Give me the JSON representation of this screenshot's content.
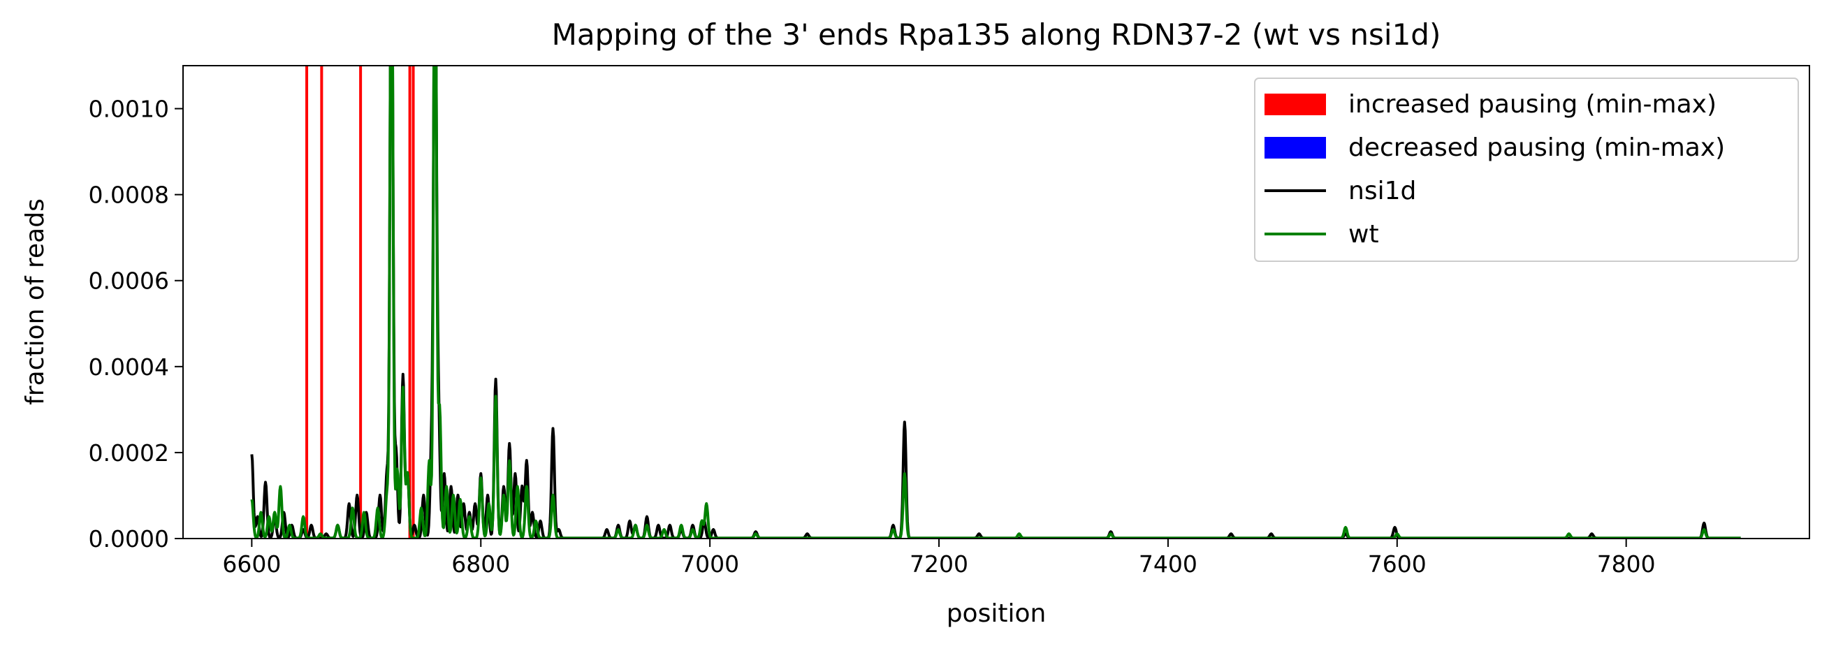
{
  "chart_data": {
    "type": "line",
    "title": "Mapping of the 3' ends Rpa135 along RDN37-2 (wt vs nsi1d)",
    "xlabel": "position",
    "ylabel": "fraction of reads",
    "xlim": [
      6540,
      7960
    ],
    "ylim": [
      0,
      0.0011
    ],
    "xticks": [
      6600,
      6800,
      7000,
      7200,
      7400,
      7600,
      7800
    ],
    "xtick_labels": [
      "6600",
      "6800",
      "7000",
      "7200",
      "7400",
      "7600",
      "7800"
    ],
    "yticks": [
      0,
      0.0002,
      0.0004,
      0.0006,
      0.0008,
      0.001
    ],
    "ytick_labels": [
      "0.0000",
      "0.0002",
      "0.0004",
      "0.0006",
      "0.0008",
      "0.0010"
    ],
    "grid": false,
    "legend_position": "top-right",
    "legend": [
      {
        "label": "increased pausing (min-max)",
        "kind": "patch",
        "color": "#ff0000"
      },
      {
        "label": "decreased pausing (min-max)",
        "kind": "patch",
        "color": "#0000ff"
      },
      {
        "label": "nsi1d",
        "kind": "line",
        "color": "#000000"
      },
      {
        "label": "wt",
        "kind": "line",
        "color": "#008000"
      }
    ],
    "increased_pausing_positions": [
      6648,
      6661,
      6695,
      6738,
      6741
    ],
    "series": [
      {
        "name": "nsi1d",
        "color": "#000000",
        "baseline": 1e-06,
        "range": [
          6600,
          7900
        ],
        "peaks": [
          [
            6600,
            0.000195
          ],
          [
            6605,
            5e-05
          ],
          [
            6612,
            0.00013
          ],
          [
            6620,
            5e-05
          ],
          [
            6628,
            6e-05
          ],
          [
            6635,
            3e-05
          ],
          [
            6645,
            2e-05
          ],
          [
            6652,
            3e-05
          ],
          [
            6665,
            1e-05
          ],
          [
            6675,
            3e-05
          ],
          [
            6685,
            8e-05
          ],
          [
            6692,
            0.0001
          ],
          [
            6700,
            6e-05
          ],
          [
            6712,
            0.0001
          ],
          [
            6718,
            0.00015
          ],
          [
            6722,
            0.0015
          ],
          [
            6726,
            0.0002
          ],
          [
            6732,
            0.00038
          ],
          [
            6736,
            0.00015
          ],
          [
            6742,
            3e-05
          ],
          [
            6750,
            0.0001
          ],
          [
            6757,
            0.0002
          ],
          [
            6760,
            0.0014
          ],
          [
            6763,
            0.0003
          ],
          [
            6768,
            0.00015
          ],
          [
            6774,
            0.00012
          ],
          [
            6780,
            0.0001
          ],
          [
            6785,
            8e-05
          ],
          [
            6790,
            6e-05
          ],
          [
            6795,
            8e-05
          ],
          [
            6800,
            0.00015
          ],
          [
            6806,
            0.0001
          ],
          [
            6813,
            0.00037
          ],
          [
            6820,
            0.00012
          ],
          [
            6825,
            0.00022
          ],
          [
            6830,
            0.00015
          ],
          [
            6836,
            0.00012
          ],
          [
            6840,
            0.00018
          ],
          [
            6845,
            6e-05
          ],
          [
            6852,
            4e-05
          ],
          [
            6863,
            0.000255
          ],
          [
            6868,
            2e-05
          ],
          [
            6910,
            2e-05
          ],
          [
            6920,
            3e-05
          ],
          [
            6930,
            4e-05
          ],
          [
            6935,
            3e-05
          ],
          [
            6945,
            5e-05
          ],
          [
            6955,
            3e-05
          ],
          [
            6965,
            3e-05
          ],
          [
            6975,
            2e-05
          ],
          [
            6985,
            3e-05
          ],
          [
            6995,
            4e-05
          ],
          [
            7003,
            2e-05
          ],
          [
            7040,
            1.5e-05
          ],
          [
            7085,
            1e-05
          ],
          [
            7160,
            3e-05
          ],
          [
            7170,
            0.00027
          ],
          [
            7235,
            1e-05
          ],
          [
            7350,
            1.5e-05
          ],
          [
            7455,
            1e-05
          ],
          [
            7490,
            1e-05
          ],
          [
            7555,
            1e-05
          ],
          [
            7598,
            2.5e-05
          ],
          [
            7770,
            1e-05
          ],
          [
            7868,
            3.5e-05
          ]
        ]
      },
      {
        "name": "wt",
        "color": "#008000",
        "baseline": 1e-06,
        "range": [
          6600,
          7900
        ],
        "peaks": [
          [
            6600,
            9e-05
          ],
          [
            6608,
            6e-05
          ],
          [
            6615,
            5e-05
          ],
          [
            6620,
            6e-05
          ],
          [
            6625,
            0.00012
          ],
          [
            6633,
            3e-05
          ],
          [
            6645,
            5e-05
          ],
          [
            6660,
            1e-05
          ],
          [
            6675,
            3e-05
          ],
          [
            6688,
            7e-05
          ],
          [
            6698,
            6e-05
          ],
          [
            6710,
            7e-05
          ],
          [
            6718,
            0.0001
          ],
          [
            6722,
            0.0015
          ],
          [
            6727,
            0.00016
          ],
          [
            6732,
            0.00035
          ],
          [
            6736,
            0.00015
          ],
          [
            6748,
            7e-05
          ],
          [
            6755,
            0.00018
          ],
          [
            6760,
            0.0015
          ],
          [
            6764,
            0.0003
          ],
          [
            6770,
            0.00012
          ],
          [
            6776,
            0.0001
          ],
          [
            6782,
            9e-05
          ],
          [
            6790,
            5e-05
          ],
          [
            6800,
            0.00014
          ],
          [
            6807,
            8e-05
          ],
          [
            6813,
            0.00033
          ],
          [
            6820,
            0.0001
          ],
          [
            6825,
            0.00018
          ],
          [
            6832,
            0.00012
          ],
          [
            6840,
            0.00012
          ],
          [
            6848,
            4e-05
          ],
          [
            6863,
            0.0001
          ],
          [
            6920,
            2e-05
          ],
          [
            6935,
            3e-05
          ],
          [
            6945,
            3e-05
          ],
          [
            6960,
            2e-05
          ],
          [
            6975,
            3e-05
          ],
          [
            6985,
            2e-05
          ],
          [
            6993,
            4e-05
          ],
          [
            6997,
            8e-05
          ],
          [
            7040,
            1e-05
          ],
          [
            7160,
            2e-05
          ],
          [
            7170,
            0.00015
          ],
          [
            7270,
            1e-05
          ],
          [
            7350,
            1e-05
          ],
          [
            7555,
            2.5e-05
          ],
          [
            7600,
            1e-05
          ],
          [
            7750,
            1e-05
          ],
          [
            7868,
            2e-05
          ]
        ]
      }
    ]
  }
}
